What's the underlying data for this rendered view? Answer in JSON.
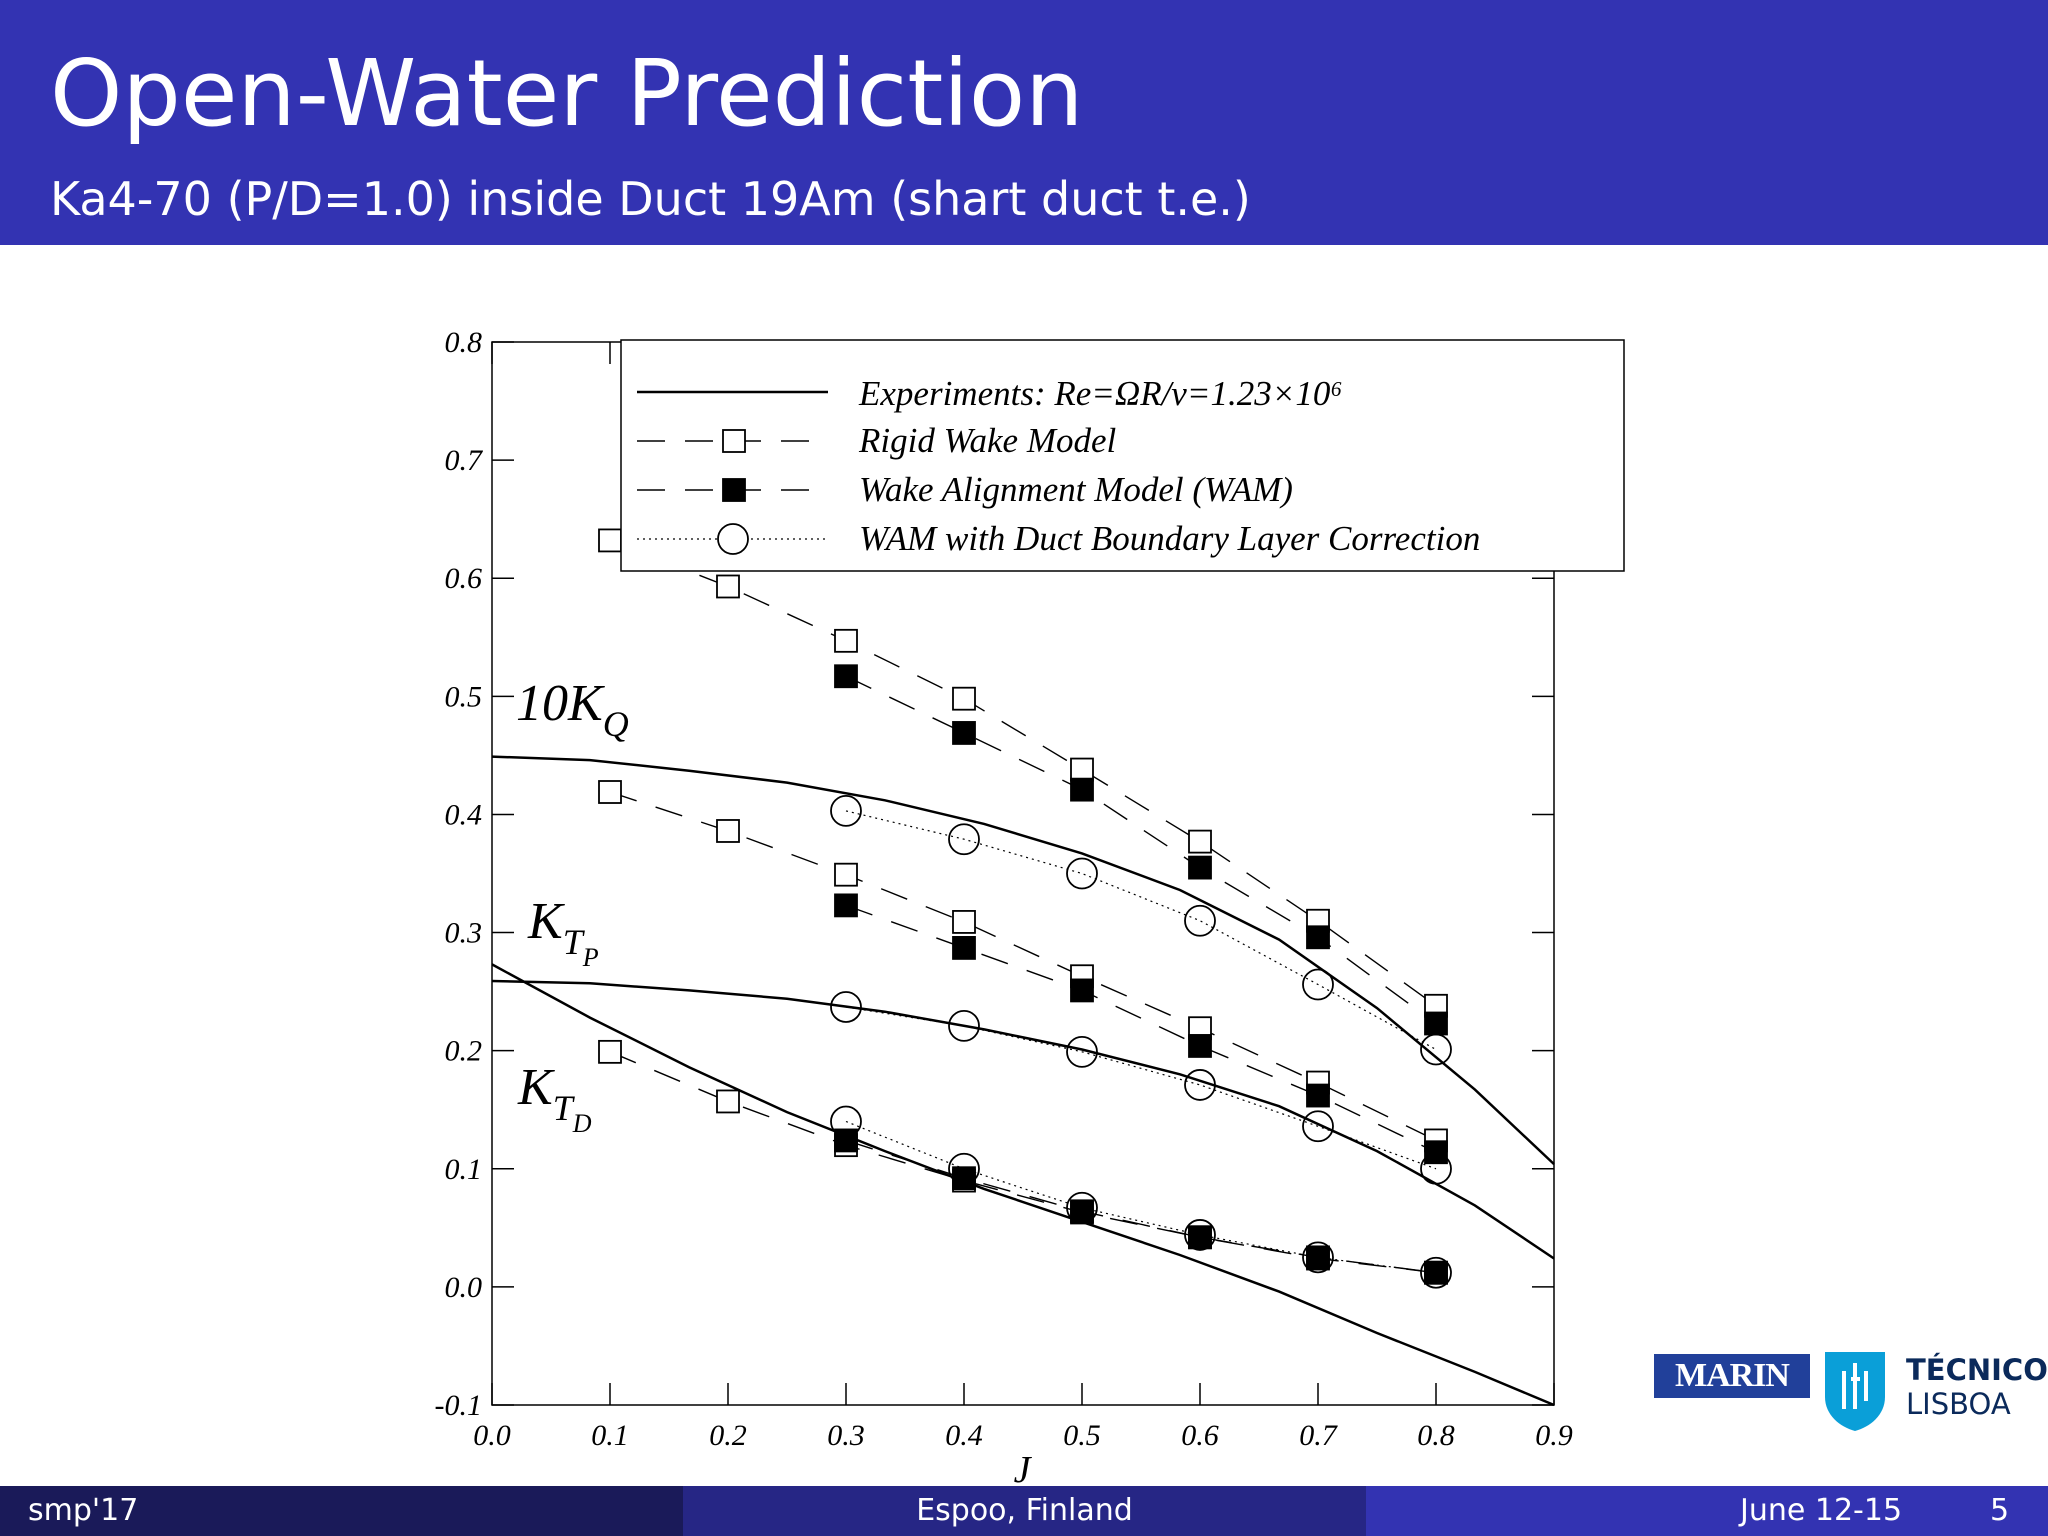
{
  "slide": {
    "title": "Open-Water Prediction",
    "subtitle": "Ka4-70 (P/D=1.0) inside Duct 19Am (shart duct t.e.)"
  },
  "footer": {
    "left": "smp'17",
    "center": "Espoo, Finland",
    "date": "June 12-15",
    "page": "5"
  },
  "logos": {
    "marin": "MARIN",
    "tecnico_line1": "TÉCNICO",
    "tecnico_line2": "LISBOA"
  },
  "colors": {
    "header": "#3333b2",
    "footer_left": "#1a1a59",
    "footer_center": "#262685",
    "footer_right": "#3333b2"
  },
  "chart_data": {
    "type": "line",
    "xlabel": "J",
    "ylabel": "",
    "xlim": [
      0.0,
      0.9
    ],
    "ylim": [
      -0.1,
      0.8
    ],
    "xticks": [
      "0.0",
      "0.1",
      "0.2",
      "0.3",
      "0.4",
      "0.5",
      "0.6",
      "0.7",
      "0.8",
      "0.9"
    ],
    "yticks": [
      "-0.1",
      "0.0",
      "0.1",
      "0.2",
      "0.3",
      "0.4",
      "0.5",
      "0.6",
      "0.7",
      "0.8"
    ],
    "legend_position": "top-right",
    "legend": [
      "Experiments: Re=ΩR/ν=1.23×10⁶",
      "Rigid Wake Model",
      "Wake Alignment Model (WAM)",
      "WAM with Duct Boundary Layer Correction"
    ],
    "curve_labels": {
      "kq": "10K_Q",
      "ktp": "K_TP",
      "ktd": "K_TD"
    },
    "series": [
      {
        "name": "Experiments: Re=ΩR/ν=1.23×10⁶",
        "curve": "10K_Q",
        "x": [
          0.0,
          0.083,
          0.167,
          0.25,
          0.333,
          0.417,
          0.5,
          0.583,
          0.667,
          0.75,
          0.833,
          0.9
        ],
        "y": [
          0.449,
          0.446,
          0.437,
          0.427,
          0.412,
          0.392,
          0.367,
          0.336,
          0.294,
          0.236,
          0.167,
          0.104
        ]
      },
      {
        "name": "Experiments: Re=ΩR/ν=1.23×10⁶",
        "curve": "K_TP",
        "x": [
          0.0,
          0.083,
          0.167,
          0.25,
          0.333,
          0.417,
          0.5,
          0.583,
          0.667,
          0.75,
          0.833,
          0.9
        ],
        "y": [
          0.259,
          0.257,
          0.251,
          0.244,
          0.233,
          0.218,
          0.201,
          0.18,
          0.153,
          0.115,
          0.069,
          0.024
        ]
      },
      {
        "name": "Experiments: Re=ΩR/ν=1.23×10⁶",
        "curve": "K_TD",
        "x": [
          0.0,
          0.083,
          0.167,
          0.25,
          0.333,
          0.417,
          0.5,
          0.583,
          0.667,
          0.75,
          0.833,
          0.9
        ],
        "y": [
          0.273,
          0.228,
          0.186,
          0.148,
          0.115,
          0.083,
          0.055,
          0.027,
          -0.004,
          -0.039,
          -0.072,
          -0.1
        ]
      },
      {
        "name": "Rigid Wake Model",
        "curve": "10K_Q",
        "x": [
          0.1,
          0.2,
          0.3,
          0.4,
          0.5,
          0.6,
          0.7,
          0.8
        ],
        "y": [
          0.632,
          0.593,
          0.547,
          0.498,
          0.438,
          0.377,
          0.31,
          0.238
        ]
      },
      {
        "name": "Rigid Wake Model",
        "curve": "K_TP",
        "x": [
          0.1,
          0.2,
          0.3,
          0.4,
          0.5,
          0.6,
          0.7,
          0.8
        ],
        "y": [
          0.419,
          0.386,
          0.349,
          0.309,
          0.263,
          0.219,
          0.173,
          0.124
        ]
      },
      {
        "name": "Rigid Wake Model",
        "curve": "K_TD",
        "x": [
          0.1,
          0.2,
          0.3,
          0.4,
          0.5,
          0.6,
          0.7,
          0.8
        ],
        "y": [
          0.199,
          0.157,
          0.12,
          0.09,
          0.063,
          0.042,
          0.025,
          0.012
        ]
      },
      {
        "name": "Wake Alignment Model (WAM)",
        "curve": "10K_Q",
        "x": [
          0.3,
          0.4,
          0.5,
          0.6,
          0.7,
          0.8
        ],
        "y": [
          0.517,
          0.469,
          0.421,
          0.355,
          0.296,
          0.223
        ]
      },
      {
        "name": "Wake Alignment Model (WAM)",
        "curve": "K_TP",
        "x": [
          0.3,
          0.4,
          0.5,
          0.6,
          0.7,
          0.8
        ],
        "y": [
          0.323,
          0.287,
          0.251,
          0.204,
          0.162,
          0.114
        ]
      },
      {
        "name": "Wake Alignment Model (WAM)",
        "curve": "K_TD",
        "x": [
          0.3,
          0.4,
          0.5,
          0.6,
          0.7,
          0.8
        ],
        "y": [
          0.124,
          0.092,
          0.064,
          0.042,
          0.024,
          0.012
        ]
      },
      {
        "name": "WAM with Duct Boundary Layer Correction",
        "curve": "10K_Q",
        "x": [
          0.3,
          0.4,
          0.5,
          0.6,
          0.7,
          0.8
        ],
        "y": [
          0.403,
          0.379,
          0.35,
          0.31,
          0.256,
          0.201
        ]
      },
      {
        "name": "WAM with Duct Boundary Layer Correction",
        "curve": "K_TP",
        "x": [
          0.3,
          0.4,
          0.5,
          0.6,
          0.7,
          0.8
        ],
        "y": [
          0.237,
          0.221,
          0.199,
          0.171,
          0.136,
          0.1
        ]
      },
      {
        "name": "WAM with Duct Boundary Layer Correction",
        "curve": "K_TD",
        "x": [
          0.3,
          0.4,
          0.5,
          0.6,
          0.7,
          0.8
        ],
        "y": [
          0.14,
          0.1,
          0.067,
          0.044,
          0.025,
          0.012
        ]
      }
    ]
  }
}
